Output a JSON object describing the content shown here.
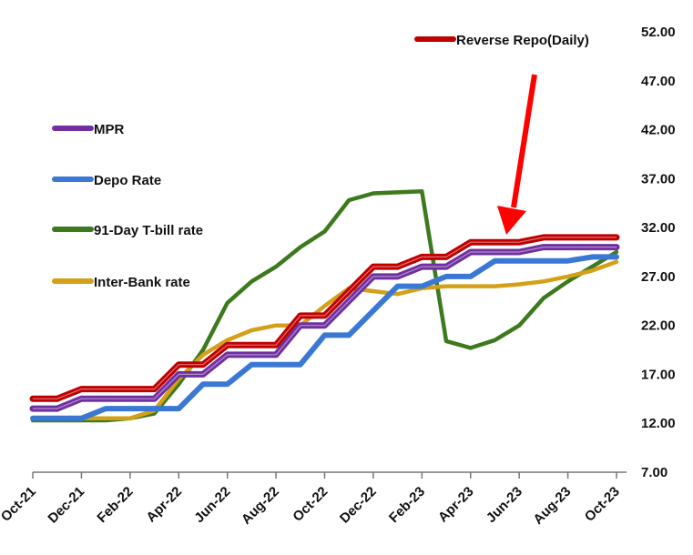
{
  "chart_data": {
    "type": "line",
    "title": "",
    "xlabel": "",
    "ylabel": "",
    "ylim": [
      7,
      52
    ],
    "y_ticks": [
      "7.00",
      "12.00",
      "17.00",
      "22.00",
      "27.00",
      "32.00",
      "37.00",
      "42.00",
      "47.00",
      "52.00"
    ],
    "y_axis_position": "right",
    "grid": false,
    "x": [
      "Oct-21",
      "Nov-21",
      "Dec-21",
      "Jan-22",
      "Feb-22",
      "Mar-22",
      "Apr-22",
      "May-22",
      "Jun-22",
      "Jul-22",
      "Aug-22",
      "Sep-22",
      "Oct-22",
      "Nov-22",
      "Dec-22",
      "Jan-23",
      "Feb-23",
      "Mar-23",
      "Apr-23",
      "May-23",
      "Jun-23",
      "Jul-23",
      "Aug-23",
      "Sep-23",
      "Oct-23"
    ],
    "x_tick_labels": [
      "Oct-21",
      "Dec-21",
      "Feb-22",
      "Apr-22",
      "Jun-22",
      "Aug-22",
      "Oct-22",
      "Dec-22",
      "Feb-23",
      "Apr-23",
      "Jun-23",
      "Aug-23",
      "Oct-23"
    ],
    "series": [
      {
        "name": "Reverse Repo(Daily)",
        "color": "#c00000",
        "values": [
          14.5,
          14.5,
          15.5,
          15.5,
          15.5,
          15.5,
          18,
          18,
          20,
          20,
          20,
          23,
          23,
          25.5,
          28,
          28,
          29,
          29,
          30.5,
          30.5,
          30.5,
          31,
          31,
          31,
          31
        ]
      },
      {
        "name": "MPR",
        "color": "#7030a0",
        "values": [
          13.5,
          13.5,
          14.5,
          14.5,
          14.5,
          14.5,
          17,
          17,
          19,
          19,
          19,
          22,
          22,
          24.5,
          27,
          27,
          28,
          28,
          29.5,
          29.5,
          29.5,
          30,
          30,
          30,
          30
        ]
      },
      {
        "name": "Depo Rate",
        "color": "#3a78d4",
        "values": [
          12.5,
          12.5,
          12.5,
          13.5,
          13.5,
          13.5,
          13.5,
          16,
          16,
          18,
          18,
          18,
          21,
          21,
          23.5,
          26,
          26,
          27,
          27,
          28.6,
          28.6,
          28.6,
          28.6,
          29,
          29
        ]
      },
      {
        "name": "91-Day T-bill rate",
        "color": "#3d7a1e",
        "values": [
          12.3,
          12.3,
          12.3,
          12.3,
          12.5,
          13,
          16,
          19.5,
          24.3,
          26.5,
          28,
          30,
          31.6,
          34.8,
          35.5,
          35.6,
          35.7,
          20.4,
          19.7,
          20.5,
          22,
          24.8,
          26.5,
          28,
          29.5
        ]
      },
      {
        "name": "Inter-Bank rate",
        "color": "#d4a017",
        "values": [
          12.5,
          12.5,
          12.5,
          12.5,
          12.5,
          13.3,
          16.5,
          19,
          20.5,
          21.5,
          22,
          22,
          24,
          25.8,
          25.5,
          25.2,
          25.8,
          26,
          26,
          26,
          26.2,
          26.5,
          27,
          27.6,
          28.5
        ]
      }
    ],
    "annotations": [
      {
        "type": "arrow",
        "color": "#ff0000",
        "points_to": "Reverse Repo(Daily)",
        "at": "May-23"
      }
    ],
    "legend_placement": "left / top-right"
  }
}
